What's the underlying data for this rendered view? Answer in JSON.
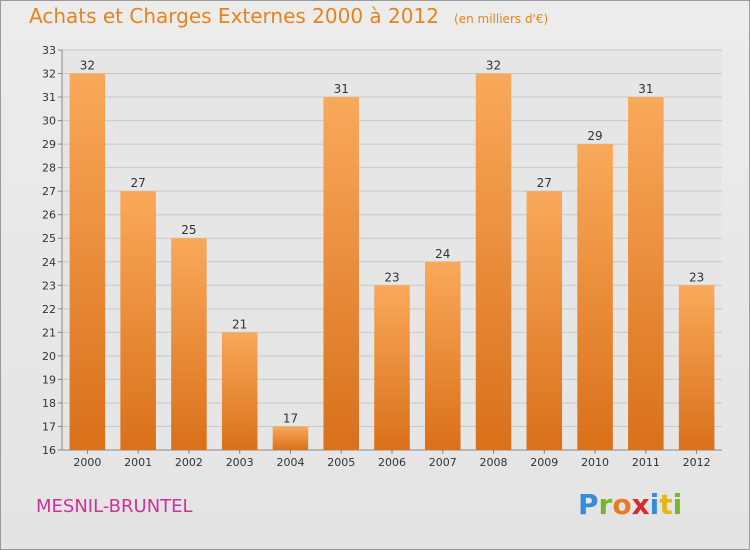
{
  "title": "Achats et Charges Externes 2000 à 2012",
  "unit_note": "(en milliers d'€)",
  "commune": "MESNIL-BRUNTEL",
  "brand": {
    "letters": [
      "P",
      "r",
      "o",
      "x",
      "i",
      "t",
      "i"
    ],
    "colors": [
      "#3a8ad8",
      "#79b52b",
      "#e87b1e",
      "#d62e2e",
      "#3a8ad8",
      "#e8b41e",
      "#79b52b"
    ]
  },
  "colors": {
    "title": "#e8821f",
    "commune": "#cc3399",
    "bar_light": "#f9a95a",
    "bar_dark": "#d9701a"
  },
  "chart_data": {
    "type": "bar",
    "title": "Achats et Charges Externes 2000 à 2012",
    "categories": [
      "2000",
      "2001",
      "2002",
      "2003",
      "2004",
      "2005",
      "2006",
      "2007",
      "2008",
      "2009",
      "2010",
      "2011",
      "2012"
    ],
    "values": [
      32,
      27,
      25,
      21,
      17,
      31,
      23,
      24,
      32,
      27,
      29,
      31,
      23
    ],
    "ylim": [
      16,
      33
    ],
    "yticks": [
      16,
      17,
      18,
      19,
      20,
      21,
      22,
      23,
      24,
      25,
      26,
      27,
      28,
      29,
      30,
      31,
      32,
      33
    ],
    "grid": true,
    "data_labels": true
  }
}
